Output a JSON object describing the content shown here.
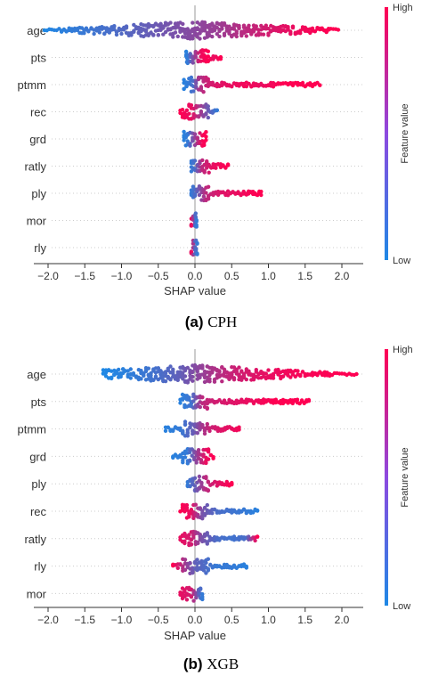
{
  "colors": {
    "low": "#1e88e5",
    "high": "#ff0052",
    "grid": "#cccccc"
  },
  "chart_data": [
    {
      "type": "scatter",
      "subtype": "shap-beeswarm",
      "caption_tag": "(a)",
      "caption_name": "CPH",
      "xlabel": "SHAP value",
      "xlim": [
        -2.25,
        2.25
      ],
      "xticks": [
        -2.0,
        -1.5,
        -1.0,
        -0.5,
        0.0,
        0.5,
        1.0,
        1.5,
        2.0
      ],
      "tick_labels": [
        "−2.0",
        "−1.5",
        "−1.0",
        "−0.5",
        "0.0",
        "0.5",
        "1.0",
        "1.5",
        "2.0"
      ],
      "colorbar": {
        "high_label": "High",
        "low_label": "Low",
        "title": "Feature value"
      },
      "features": [
        {
          "name": "age",
          "points": [
            [
              -2.05,
              0.0
            ],
            [
              -1.95,
              0.03
            ],
            [
              -1.85,
              0.05
            ],
            [
              -1.75,
              0.07
            ],
            [
              -1.6,
              0.1
            ],
            [
              -1.45,
              0.13
            ],
            [
              -1.3,
              0.16
            ],
            [
              -1.1,
              0.2
            ],
            [
              -0.9,
              0.25
            ],
            [
              -0.7,
              0.3
            ],
            [
              -0.5,
              0.35
            ],
            [
              -0.3,
              0.4
            ],
            [
              -0.1,
              0.45
            ],
            [
              0.1,
              0.5
            ],
            [
              0.3,
              0.55
            ],
            [
              0.5,
              0.62
            ],
            [
              0.7,
              0.7
            ],
            [
              0.9,
              0.77
            ],
            [
              1.1,
              0.84
            ],
            [
              1.3,
              0.9
            ],
            [
              1.5,
              0.95
            ],
            [
              1.7,
              0.98
            ],
            [
              1.85,
              1.0
            ],
            [
              1.95,
              1.0
            ]
          ]
        },
        {
          "name": "pts",
          "points": [
            [
              -0.12,
              0.05
            ],
            [
              -0.1,
              0.1
            ],
            [
              0.08,
              0.9
            ],
            [
              0.12,
              0.95
            ],
            [
              0.18,
              1.0
            ],
            [
              0.25,
              0.9
            ],
            [
              0.35,
              1.0
            ]
          ]
        },
        {
          "name": "ptmm",
          "points": [
            [
              -0.15,
              0.05
            ],
            [
              -0.08,
              0.1
            ],
            [
              -0.02,
              0.2
            ],
            [
              0.05,
              0.6
            ],
            [
              0.15,
              0.75
            ],
            [
              0.3,
              0.85
            ],
            [
              0.5,
              0.9
            ],
            [
              0.7,
              0.95
            ],
            [
              0.9,
              0.9
            ],
            [
              1.2,
              1.0
            ],
            [
              1.7,
              1.0
            ]
          ]
        },
        {
          "name": "rec",
          "points": [
            [
              -0.2,
              1.0
            ],
            [
              -0.05,
              0.9
            ],
            [
              0.15,
              0.4
            ],
            [
              0.3,
              0.1
            ]
          ]
        },
        {
          "name": "grd",
          "points": [
            [
              -0.15,
              0.05
            ],
            [
              -0.1,
              0.1
            ],
            [
              0.1,
              0.95
            ],
            [
              0.15,
              1.0
            ]
          ]
        },
        {
          "name": "ratly",
          "points": [
            [
              -0.05,
              0.1
            ],
            [
              0.0,
              0.2
            ],
            [
              0.1,
              0.7
            ],
            [
              0.25,
              0.9
            ],
            [
              0.45,
              1.0
            ]
          ]
        },
        {
          "name": "ply",
          "points": [
            [
              -0.05,
              0.1
            ],
            [
              0.0,
              0.2
            ],
            [
              0.15,
              0.7
            ],
            [
              0.35,
              0.85
            ],
            [
              0.55,
              0.9
            ],
            [
              0.7,
              0.95
            ],
            [
              0.85,
              1.0
            ],
            [
              0.9,
              1.0
            ]
          ]
        },
        {
          "name": "mor",
          "points": [
            [
              -0.05,
              0.9
            ],
            [
              0.0,
              0.3
            ],
            [
              0.02,
              0.1
            ]
          ]
        },
        {
          "name": "rly",
          "points": [
            [
              -0.05,
              0.9
            ],
            [
              0.0,
              0.3
            ],
            [
              0.03,
              0.1
            ]
          ]
        }
      ]
    },
    {
      "type": "scatter",
      "subtype": "shap-beeswarm",
      "caption_tag": "(b)",
      "caption_name": "XGB",
      "xlabel": "SHAP value",
      "xlim": [
        -2.25,
        2.25
      ],
      "xticks": [
        -2.0,
        -1.5,
        -1.0,
        -0.5,
        0.0,
        0.5,
        1.0,
        1.5,
        2.0
      ],
      "tick_labels": [
        "−2.0",
        "−1.5",
        "−1.0",
        "−0.5",
        "0.0",
        "0.5",
        "1.0",
        "1.5",
        "2.0"
      ],
      "colorbar": {
        "high_label": "High",
        "low_label": "Low",
        "title": "Feature value"
      },
      "features": [
        {
          "name": "age",
          "points": [
            [
              -1.25,
              0.0
            ],
            [
              -1.1,
              0.03
            ],
            [
              -0.95,
              0.06
            ],
            [
              -0.8,
              0.1
            ],
            [
              -0.6,
              0.15
            ],
            [
              -0.4,
              0.22
            ],
            [
              -0.2,
              0.3
            ],
            [
              0.0,
              0.45
            ],
            [
              0.2,
              0.6
            ],
            [
              0.5,
              0.75
            ],
            [
              0.8,
              0.85
            ],
            [
              1.1,
              0.92
            ],
            [
              1.4,
              0.96
            ],
            [
              1.7,
              0.98
            ],
            [
              2.0,
              1.0
            ],
            [
              2.2,
              1.0
            ]
          ]
        },
        {
          "name": "pts",
          "points": [
            [
              -0.2,
              0.05
            ],
            [
              -0.05,
              0.15
            ],
            [
              0.1,
              0.7
            ],
            [
              0.3,
              0.8
            ],
            [
              0.5,
              0.85
            ],
            [
              0.7,
              0.9
            ],
            [
              0.9,
              0.95
            ],
            [
              1.1,
              1.0
            ],
            [
              1.3,
              1.0
            ],
            [
              1.55,
              1.0
            ]
          ]
        },
        {
          "name": "ptmm",
          "points": [
            [
              -0.4,
              0.05
            ],
            [
              -0.2,
              0.1
            ],
            [
              0.0,
              0.35
            ],
            [
              0.1,
              0.6
            ],
            [
              0.2,
              0.75
            ],
            [
              0.35,
              0.85
            ],
            [
              0.5,
              0.9
            ],
            [
              0.6,
              0.95
            ]
          ]
        },
        {
          "name": "grd",
          "points": [
            [
              -0.3,
              0.05
            ],
            [
              -0.1,
              0.1
            ],
            [
              0.05,
              0.6
            ],
            [
              0.15,
              0.9
            ],
            [
              0.25,
              1.0
            ]
          ]
        },
        {
          "name": "ply",
          "points": [
            [
              -0.1,
              0.1
            ],
            [
              0.0,
              0.3
            ],
            [
              0.15,
              0.7
            ],
            [
              0.3,
              0.85
            ],
            [
              0.5,
              1.0
            ]
          ]
        },
        {
          "name": "rec",
          "points": [
            [
              -0.2,
              1.0
            ],
            [
              -0.05,
              0.9
            ],
            [
              0.1,
              0.4
            ],
            [
              0.3,
              0.2
            ],
            [
              0.5,
              0.15
            ],
            [
              0.7,
              0.1
            ],
            [
              0.85,
              0.05
            ]
          ]
        },
        {
          "name": "ratly",
          "points": [
            [
              -0.2,
              0.9
            ],
            [
              -0.05,
              0.8
            ],
            [
              0.1,
              0.4
            ],
            [
              0.3,
              0.2
            ],
            [
              0.5,
              0.15
            ],
            [
              0.7,
              0.2
            ],
            [
              0.85,
              1.0
            ]
          ]
        },
        {
          "name": "rly",
          "points": [
            [
              -0.3,
              1.0
            ],
            [
              -0.1,
              0.5
            ],
            [
              0.0,
              0.3
            ],
            [
              0.15,
              0.2
            ],
            [
              0.3,
              0.1
            ],
            [
              0.5,
              0.1
            ],
            [
              0.7,
              0.05
            ]
          ]
        },
        {
          "name": "mor",
          "points": [
            [
              -0.2,
              0.9
            ],
            [
              -0.05,
              0.8
            ],
            [
              0.05,
              0.3
            ],
            [
              0.1,
              0.1
            ]
          ]
        }
      ]
    }
  ]
}
